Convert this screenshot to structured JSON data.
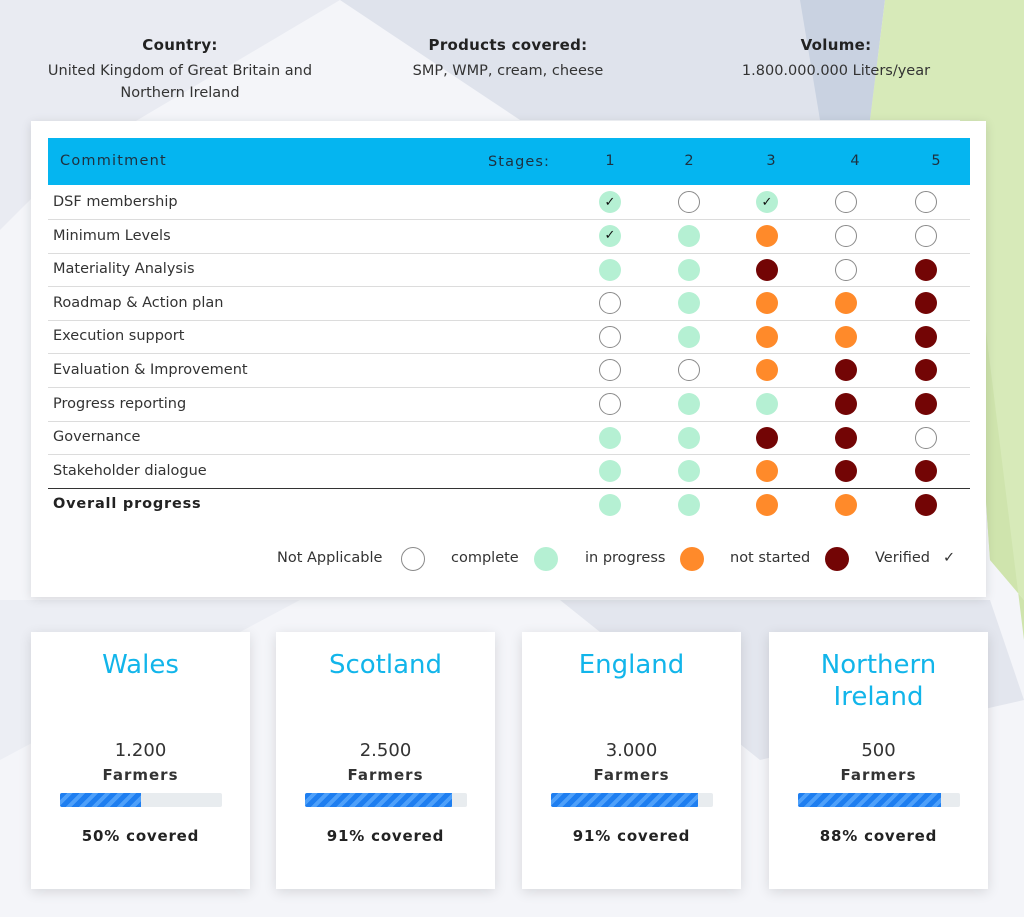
{
  "summary": {
    "country": {
      "label": "Country:",
      "value_line1": "United Kingdom of Great Britain and",
      "value_line2": "Northern Ireland"
    },
    "products": {
      "label": "Products covered:",
      "value": "SMP, WMP, cream, cheese"
    },
    "volume": {
      "label": "Volume:",
      "value": "1.800.000.000 Liters/year"
    }
  },
  "table": {
    "commitment_label": "Commitment",
    "stages_label": "Stages:",
    "stages": [
      "1",
      "2",
      "3",
      "4",
      "5"
    ],
    "rows": [
      {
        "label": "DSF membership",
        "status": [
          "complete-verified",
          "na",
          "complete-verified",
          "na",
          "na"
        ]
      },
      {
        "label": "Minimum Levels",
        "status": [
          "complete-verified",
          "complete",
          "inprogress",
          "na",
          "na"
        ]
      },
      {
        "label": "Materiality Analysis",
        "status": [
          "complete",
          "complete",
          "notstarted",
          "na",
          "notstarted"
        ]
      },
      {
        "label": "Roadmap & Action plan",
        "status": [
          "na",
          "complete",
          "inprogress",
          "inprogress",
          "notstarted"
        ]
      },
      {
        "label": "Execution support",
        "status": [
          "na",
          "complete",
          "inprogress",
          "inprogress",
          "notstarted"
        ]
      },
      {
        "label": "Evaluation & Improvement",
        "status": [
          "na",
          "na",
          "inprogress",
          "notstarted",
          "notstarted"
        ]
      },
      {
        "label": "Progress reporting",
        "status": [
          "na",
          "complete",
          "complete",
          "notstarted",
          "notstarted"
        ]
      },
      {
        "label": "Governance",
        "status": [
          "complete",
          "complete",
          "notstarted",
          "notstarted",
          "na"
        ]
      },
      {
        "label": "Stakeholder dialogue",
        "status": [
          "complete",
          "complete",
          "inprogress",
          "notstarted",
          "notstarted"
        ]
      }
    ],
    "overall": {
      "label": "Overall progress",
      "status": [
        "complete",
        "complete",
        "inprogress",
        "inprogress",
        "notstarted"
      ]
    }
  },
  "legend": {
    "not_applicable": "Not Applicable",
    "complete": "complete",
    "in_progress": "in progress",
    "not_started": "not started",
    "verified": "Verified",
    "verified_mark": "✓"
  },
  "colors": {
    "accent": "#05b5f0",
    "complete": "#b5f0d3",
    "in_progress": "#ff8a2a",
    "not_started": "#730505",
    "region_title": "#12b5ea",
    "bar_fill": "#1e7ef0"
  },
  "regions": [
    {
      "name_line1": "Wales",
      "name_line2": "",
      "farmers": "1.200",
      "farmers_label": "Farmers",
      "coverage": 0.5,
      "coverage_label": "50% covered"
    },
    {
      "name_line1": "Scotland",
      "name_line2": "",
      "farmers": "2.500",
      "farmers_label": "Farmers",
      "coverage": 0.91,
      "coverage_label": "91% covered"
    },
    {
      "name_line1": "England",
      "name_line2": "",
      "farmers": "3.000",
      "farmers_label": "Farmers",
      "coverage": 0.91,
      "coverage_label": "91% covered"
    },
    {
      "name_line1": "Northern",
      "name_line2": "Ireland",
      "farmers": "500",
      "farmers_label": "Farmers",
      "coverage": 0.88,
      "coverage_label": "88% covered"
    }
  ]
}
